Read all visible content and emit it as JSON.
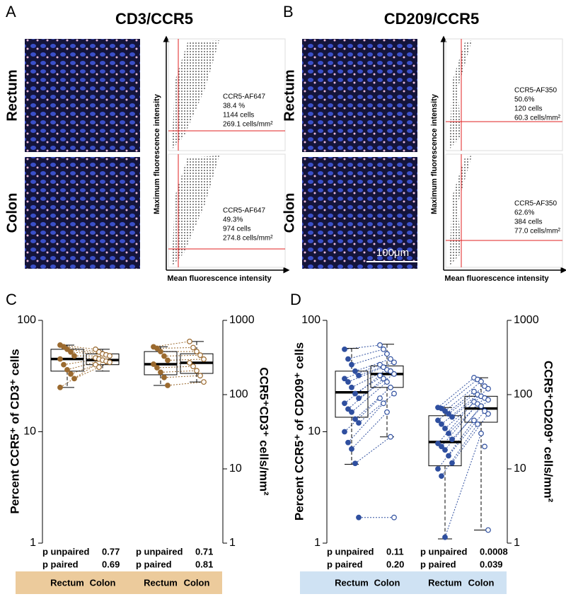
{
  "panels": [
    {
      "label": "A",
      "title": "CD3/CCR5",
      "row_labels": [
        "Rectum",
        "Colon"
      ],
      "y_label": "Maximum fluorescence intensity",
      "x_label": "Mean fluorescence intensity",
      "annotations": [
        [
          "CCR5-AF647",
          "38.4 %",
          "1144 cells",
          "269.1 cells/mm²"
        ],
        [
          "CCR5-AF647",
          "49.3%",
          "974 cells",
          "274.8 cells/mm²"
        ]
      ]
    },
    {
      "label": "B",
      "title": "CD209/CCR5",
      "row_labels": [
        "Rectum",
        "Colon"
      ],
      "y_label": "Maximum fluorescence intensity",
      "x_label": "Mean fluorescence intensity",
      "annotations": [
        [
          "CCR5-AF350",
          "50.6%",
          "120 cells",
          "60.3 cells/mm²"
        ],
        [
          "CCR5-AF350",
          "62.6%",
          "384 cells",
          "77.0 cells/mm²"
        ]
      ],
      "scale_bar": "100μm"
    }
  ],
  "chart_data": [
    {
      "type": "box",
      "label": "C",
      "y_label": "Percent CCR5⁺ of CD3⁺ cells",
      "y2_label": "CCR5⁺CD3⁺ cells/mm²",
      "log_scale": true,
      "ylim": [
        1,
        100
      ],
      "yticks": [
        1,
        10,
        100
      ],
      "y2lim": [
        1,
        1000
      ],
      "y2ticks": [
        1,
        10,
        100,
        1000
      ],
      "color": "#9b6a2f",
      "band_color": "#eccb9c",
      "groups": [
        {
          "axis": "y",
          "p_unpaired_label": "p unpaired",
          "p_unpaired": "0.77",
          "p_paired_label": "p paired",
          "p_paired": "0.69",
          "boxes": [
            {
              "name": "Rectum",
              "filled": true,
              "median": 45,
              "q1": 35,
              "q3": 55,
              "whisker_low": 25,
              "whisker_high": 60,
              "points": [
                60,
                58,
                55,
                52,
                48,
                45,
                40,
                36,
                33,
                30,
                25
              ]
            },
            {
              "name": "Colon",
              "filled": false,
              "median": 44,
              "q1": 40,
              "q3": 50,
              "whisker_low": 35,
              "whisker_high": 55,
              "points": [
                55,
                52,
                50,
                49,
                48,
                46,
                45,
                44,
                43,
                42,
                40,
                38
              ]
            }
          ]
        },
        {
          "axis": "y2",
          "p_unpaired_label": "p unpaired",
          "p_unpaired": "0.71",
          "p_paired_label": "p paired",
          "p_paired": "0.81",
          "boxes": [
            {
              "name": "Rectum",
              "filled": true,
              "median": 257,
              "q1": 185,
              "q3": 380,
              "whisker_low": 133,
              "whisker_high": 440,
              "points": [
                440,
                420,
                380,
                330,
                290,
                257,
                230,
                200,
                170,
                133
              ]
            },
            {
              "name": "Colon",
              "filled": false,
              "median": 268,
              "q1": 193,
              "q3": 355,
              "whisker_low": 148,
              "whisker_high": 520,
              "points": [
                520,
                430,
                380,
                340,
                300,
                268,
                240,
                210,
                180,
                148
              ]
            }
          ]
        }
      ]
    },
    {
      "type": "box",
      "label": "D",
      "y_label": "Percent CCR5⁺ of CD209⁺ cells",
      "y2_label": "CCR5⁺CD209⁺ cells/mm²",
      "log_scale": true,
      "ylim": [
        1,
        100
      ],
      "yticks": [
        1,
        10,
        100
      ],
      "y2lim": [
        1,
        1000
      ],
      "y2ticks": [
        1,
        10,
        100,
        1000
      ],
      "color": "#2f4f9f",
      "band_color": "#cfe2f3",
      "groups": [
        {
          "axis": "y",
          "p_unpaired_label": "p unpaired",
          "p_unpaired": "0.11",
          "p_paired_label": "p paired",
          "p_paired": "0.20",
          "boxes": [
            {
              "name": "Rectum",
              "filled": true,
              "median": 22.6,
              "q1": 13.5,
              "q3": 35,
              "whisker_low": 5.1,
              "whisker_high": 56,
              "points": [
                55,
                45,
                40,
                35,
                32,
                30,
                28,
                25,
                22,
                20,
                18,
                16,
                15,
                13,
                12,
                10,
                8,
                7,
                5.2,
                1.7
              ]
            },
            {
              "name": "Colon",
              "filled": false,
              "median": 33,
              "q1": 25,
              "q3": 39,
              "whisker_low": 9,
              "whisker_high": 61,
              "points": [
                60,
                55,
                50,
                45,
                42,
                40,
                38,
                36,
                35,
                33,
                32,
                30,
                28,
                25,
                22,
                20,
                18,
                15,
                9,
                1.7
              ]
            }
          ]
        },
        {
          "axis": "y2",
          "p_unpaired_label": "p unpaired",
          "p_unpaired": "0.0008",
          "p_paired_label": "p paired",
          "p_paired": "0.039",
          "boxes": [
            {
              "name": "Rectum",
              "filled": true,
              "median": 23,
              "q1": 11,
              "q3": 52,
              "whisker_low": 1.14,
              "whisker_high": 67,
              "points": [
                67,
                65,
                60,
                55,
                50,
                45,
                40,
                35,
                30,
                25,
                22,
                20,
                18,
                15,
                12,
                10,
                8,
                1.2
              ]
            },
            {
              "name": "Colon",
              "filled": false,
              "median": 65,
              "q1": 42.5,
              "q3": 95,
              "whisker_low": 1.5,
              "whisker_high": 169,
              "points": [
                169,
                160,
                150,
                130,
                120,
                110,
                100,
                95,
                90,
                85,
                80,
                75,
                70,
                60,
                55,
                45,
                40,
                30,
                20,
                1.5
              ]
            }
          ]
        }
      ]
    }
  ]
}
